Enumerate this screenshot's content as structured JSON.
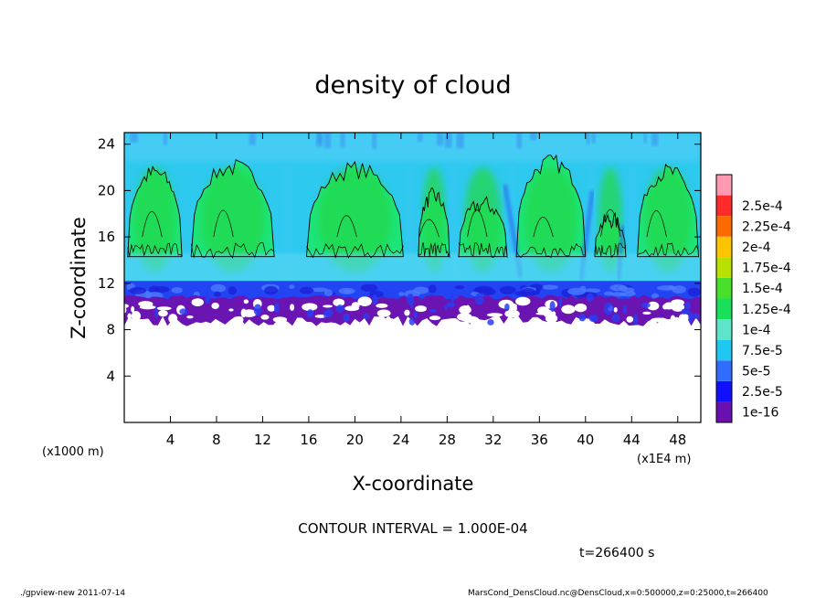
{
  "chart_data": {
    "type": "heatmap",
    "title": "density of cloud",
    "xlabel": "X-coordinate",
    "ylabel": "Z-coordinate",
    "x_unit_label": "(x1E4 m)",
    "y_unit_label": "(x1000 m)",
    "xlim": [
      0,
      50
    ],
    "ylim": [
      0,
      25
    ],
    "x_ticks": [
      4,
      8,
      12,
      16,
      20,
      24,
      28,
      32,
      36,
      40,
      44,
      48
    ],
    "y_ticks": [
      4,
      8,
      12,
      16,
      20,
      24
    ],
    "contour_interval_label": "CONTOUR INTERVAL = 1.000E-04",
    "contour_level": 0.0001,
    "time_label": "t=266400 s",
    "colorbar": {
      "levels": [
        "1e-16",
        "2.5e-5",
        "5e-5",
        "7.5e-5",
        "1e-4",
        "1.25e-4",
        "1.5e-4",
        "1.75e-4",
        "2e-4",
        "2.25e-4",
        "2.5e-4"
      ],
      "colors": [
        "#6a0fb0",
        "#1010ff",
        "#2f6cff",
        "#1ec8f0",
        "#5ee4c8",
        "#18e05a",
        "#48e02c",
        "#b8e000",
        "#ffc400",
        "#ff6a00",
        "#ff2a2a",
        "#ff9ab0"
      ]
    },
    "regions": {
      "empty_below_z": 8.3,
      "purple_band_z": [
        8.3,
        11.3
      ],
      "dark_blue_band_z": [
        10.6,
        12.2
      ],
      "cyan_layer_z": [
        12.0,
        14.8
      ],
      "green_core_z": [
        14.5,
        22.5
      ],
      "top_cyan_z": [
        22.5,
        25.0
      ]
    },
    "cloud_columns_x": [
      {
        "x_range": [
          0.3,
          5.0
        ],
        "z_top": 21.5
      },
      {
        "x_range": [
          5.8,
          13.0
        ],
        "z_top": 22.0
      },
      {
        "x_range": [
          15.8,
          24.2
        ],
        "z_top": 21.8
      },
      {
        "x_range": [
          25.5,
          28.2
        ],
        "z_top": 19.5
      },
      {
        "x_range": [
          29.0,
          33.2
        ],
        "z_top": 18.8
      },
      {
        "x_range": [
          34.0,
          40.0
        ],
        "z_top": 22.4
      },
      {
        "x_range": [
          40.8,
          43.5
        ],
        "z_top": 17.5
      },
      {
        "x_range": [
          44.5,
          49.8
        ],
        "z_top": 21.6
      }
    ]
  },
  "footer": {
    "left": "./gpview-new   2011-07-14",
    "right": "MarsCond_DensCloud.nc@DensCloud,x=0:500000,z=0:25000,t=266400"
  }
}
